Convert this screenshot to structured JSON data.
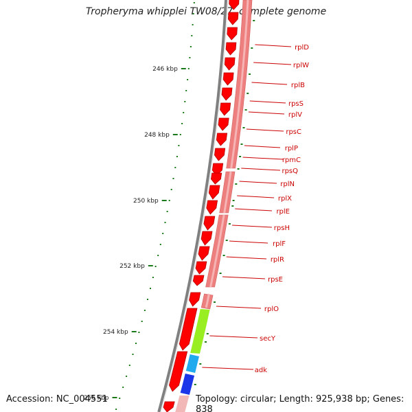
{
  "title": "Tropheryma whipplei TW08/27, complete genome",
  "accession": "Accession: NC_004551",
  "topology": "Topology: circular; Length: 925,938 bp; Genes: 838",
  "colors": {
    "forward_gene": "#ff0000",
    "forward_outline": "#b30000",
    "reverse_band": "#ee7f7f",
    "secY": "#99ee22",
    "adk_light": "#22aaee",
    "adk_dark": "#1a36e8",
    "backbone": "#808080",
    "tick": "#1a7a1a",
    "label": "#cc0000"
  },
  "ruler": [
    {
      "label": "246 kbp"
    },
    {
      "label": "248 kbp"
    },
    {
      "label": "250 kbp"
    },
    {
      "label": "252 kbp"
    },
    {
      "label": "254 kbp"
    },
    {
      "label": "256 kbp"
    }
  ],
  "genes": [
    {
      "name": "rplD"
    },
    {
      "name": "rplW"
    },
    {
      "name": "rplB"
    },
    {
      "name": "rpsS"
    },
    {
      "name": "rplV"
    },
    {
      "name": "rpsC"
    },
    {
      "name": "rplP"
    },
    {
      "name": "rpmC"
    },
    {
      "name": "rpsQ"
    },
    {
      "name": "rplN"
    },
    {
      "name": "rplX"
    },
    {
      "name": "rplE"
    },
    {
      "name": "rpsH"
    },
    {
      "name": "rplF"
    },
    {
      "name": "rplR"
    },
    {
      "name": "rpsE"
    },
    {
      "name": "rplO"
    },
    {
      "name": "secY"
    },
    {
      "name": "adk"
    }
  ]
}
